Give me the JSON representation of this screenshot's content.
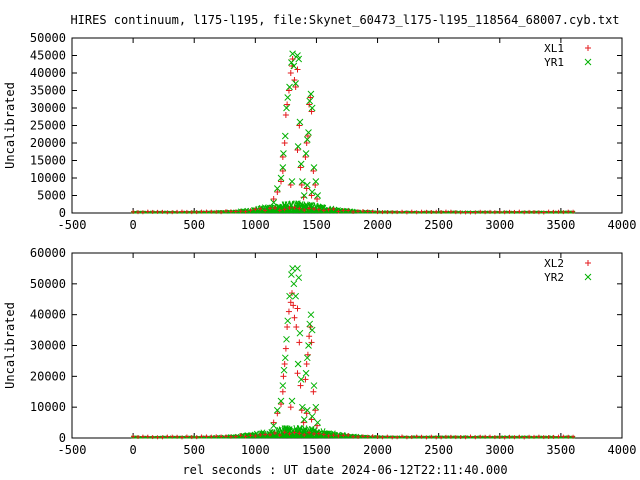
{
  "chart_data": [
    {
      "type": "scatter",
      "title": "HIRES continuum, l175-l195, file:Skynet_60473_l175-l195_118564_68007.cyb.txt",
      "xlabel": "",
      "ylabel": "Uncalibrated",
      "xlim": [
        -500,
        4000
      ],
      "ylim": [
        0,
        50000
      ],
      "xticks": [
        "-500",
        "0",
        "500",
        "1000",
        "1500",
        "2000",
        "2500",
        "3000",
        "3500",
        "4000"
      ],
      "yticks": [
        "0",
        "5000",
        "10000",
        "15000",
        "20000",
        "25000",
        "30000",
        "35000",
        "40000",
        "45000",
        "50000"
      ],
      "grid": false,
      "legend_position": "top-right",
      "series": [
        {
          "name": "XL1",
          "marker": "+",
          "color": "#e41a1c",
          "points": [
            [
              1150,
              4000
            ],
            [
              1180,
              6000
            ],
            [
              1210,
              9000
            ],
            [
              1225,
              12000
            ],
            [
              1240,
              20000
            ],
            [
              1250,
              28000
            ],
            [
              1260,
              31000
            ],
            [
              1275,
              35000
            ],
            [
              1290,
              40000
            ],
            [
              1300,
              42000
            ],
            [
              1305,
              44000
            ],
            [
              1320,
              38000
            ],
            [
              1330,
              36000
            ],
            [
              1345,
              41000
            ],
            [
              1360,
              25000
            ],
            [
              1370,
              13000
            ],
            [
              1380,
              8000
            ],
            [
              1395,
              4500
            ],
            [
              1410,
              16000
            ],
            [
              1420,
              20000
            ],
            [
              1430,
              22000
            ],
            [
              1440,
              31000
            ],
            [
              1450,
              33000
            ],
            [
              1460,
              29000
            ],
            [
              1475,
              12000
            ],
            [
              1490,
              8000
            ],
            [
              1505,
              4000
            ],
            [
              1225,
              16000
            ],
            [
              1290,
              8000
            ],
            [
              1345,
              18000
            ],
            [
              1420,
              7000
            ],
            [
              1460,
              5000
            ]
          ]
        },
        {
          "name": "YR1",
          "marker": "x",
          "color": "#00b000",
          "points": [
            [
              1150,
              3000
            ],
            [
              1180,
              7000
            ],
            [
              1210,
              10000
            ],
            [
              1225,
              13000
            ],
            [
              1245,
              22000
            ],
            [
              1255,
              30000
            ],
            [
              1265,
              33000
            ],
            [
              1280,
              36000
            ],
            [
              1295,
              43000
            ],
            [
              1305,
              45500
            ],
            [
              1315,
              42000
            ],
            [
              1330,
              37000
            ],
            [
              1345,
              45000
            ],
            [
              1355,
              44000
            ],
            [
              1365,
              26000
            ],
            [
              1375,
              14000
            ],
            [
              1385,
              9000
            ],
            [
              1400,
              5000
            ],
            [
              1415,
              17000
            ],
            [
              1425,
              21000
            ],
            [
              1435,
              23000
            ],
            [
              1445,
              32000
            ],
            [
              1455,
              34000
            ],
            [
              1465,
              30000
            ],
            [
              1480,
              13000
            ],
            [
              1495,
              9000
            ],
            [
              1510,
              5000
            ],
            [
              1230,
              17000
            ],
            [
              1300,
              9000
            ],
            [
              1350,
              19000
            ],
            [
              1425,
              8000
            ],
            [
              1465,
              6000
            ]
          ]
        }
      ]
    },
    {
      "type": "scatter",
      "title": "",
      "xlabel": "rel seconds : UT date 2024-06-12T22:11:40.000",
      "ylabel": "Uncalibrated",
      "xlim": [
        -500,
        4000
      ],
      "ylim": [
        0,
        60000
      ],
      "xticks": [
        "-500",
        "0",
        "500",
        "1000",
        "1500",
        "2000",
        "2500",
        "3000",
        "3500",
        "4000"
      ],
      "yticks": [
        "0",
        "10000",
        "20000",
        "30000",
        "40000",
        "50000",
        "60000"
      ],
      "grid": false,
      "legend_position": "top-right",
      "series": [
        {
          "name": "XL2",
          "marker": "+",
          "color": "#e41a1c",
          "points": [
            [
              1150,
              5000
            ],
            [
              1180,
              8000
            ],
            [
              1210,
              11000
            ],
            [
              1225,
              15000
            ],
            [
              1240,
              24000
            ],
            [
              1250,
              29000
            ],
            [
              1260,
              36000
            ],
            [
              1275,
              41000
            ],
            [
              1290,
              44000
            ],
            [
              1300,
              47000
            ],
            [
              1310,
              43000
            ],
            [
              1320,
              39000
            ],
            [
              1335,
              36000
            ],
            [
              1345,
              42000
            ],
            [
              1360,
              31000
            ],
            [
              1370,
              17000
            ],
            [
              1380,
              9000
            ],
            [
              1395,
              5000
            ],
            [
              1410,
              19000
            ],
            [
              1420,
              24000
            ],
            [
              1430,
              27000
            ],
            [
              1440,
              33000
            ],
            [
              1450,
              36000
            ],
            [
              1460,
              31000
            ],
            [
              1475,
              15000
            ],
            [
              1490,
              9000
            ],
            [
              1505,
              4000
            ],
            [
              1230,
              20000
            ],
            [
              1290,
              10000
            ],
            [
              1345,
              21000
            ],
            [
              1420,
              8000
            ],
            [
              1460,
              6000
            ]
          ]
        },
        {
          "name": "YR2",
          "marker": "x",
          "color": "#00b000",
          "points": [
            [
              1150,
              4000
            ],
            [
              1180,
              9000
            ],
            [
              1210,
              12000
            ],
            [
              1225,
              17000
            ],
            [
              1245,
              26000
            ],
            [
              1255,
              32000
            ],
            [
              1265,
              38000
            ],
            [
              1280,
              46000
            ],
            [
              1295,
              53000
            ],
            [
              1305,
              55000
            ],
            [
              1315,
              50000
            ],
            [
              1330,
              46000
            ],
            [
              1345,
              55000
            ],
            [
              1355,
              52000
            ],
            [
              1365,
              34000
            ],
            [
              1375,
              19000
            ],
            [
              1385,
              10000
            ],
            [
              1400,
              6000
            ],
            [
              1415,
              21000
            ],
            [
              1425,
              26000
            ],
            [
              1435,
              30000
            ],
            [
              1445,
              37000
            ],
            [
              1455,
              40000
            ],
            [
              1465,
              35000
            ],
            [
              1480,
              17000
            ],
            [
              1495,
              10000
            ],
            [
              1510,
              5000
            ],
            [
              1235,
              22000
            ],
            [
              1300,
              12000
            ],
            [
              1350,
              24000
            ],
            [
              1425,
              9000
            ],
            [
              1465,
              7000
            ]
          ]
        }
      ]
    }
  ]
}
